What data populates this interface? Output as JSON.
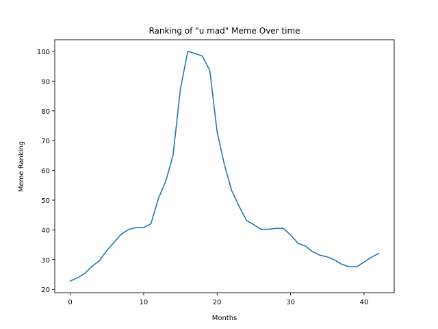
{
  "chart_data": {
    "type": "line",
    "title": "Ranking of \"u mad\" Meme Over time",
    "xlabel": "Months",
    "ylabel": "Meme Ranking",
    "xlim": [
      -2.1,
      44.1
    ],
    "ylim": [
      18.9,
      103.9
    ],
    "xticks": [
      0,
      10,
      20,
      30,
      40
    ],
    "yticks": [
      20,
      30,
      40,
      50,
      60,
      70,
      80,
      90,
      100
    ],
    "grid": false,
    "series": [
      {
        "color": "#1f77b4",
        "x": [
          0,
          1,
          2,
          3,
          4,
          5,
          6,
          7,
          8,
          9,
          10,
          11,
          12,
          13,
          14,
          15,
          16,
          17,
          18,
          19,
          20,
          21,
          22,
          23,
          24,
          25,
          26,
          27,
          28,
          29,
          30,
          31,
          32,
          33,
          34,
          35,
          36,
          37,
          38,
          39,
          40,
          41,
          42
        ],
        "values": [
          22.8,
          23.9,
          25.4,
          27.8,
          29.7,
          33.1,
          35.9,
          38.7,
          40.2,
          40.8,
          40.8,
          42.1,
          50.5,
          56.3,
          65.1,
          87.3,
          100,
          99.3,
          98.4,
          93.6,
          72.9,
          61.8,
          53.1,
          47.9,
          43.2,
          41.7,
          40.2,
          40.2,
          40.5,
          40.5,
          38.3,
          35.5,
          34.6,
          32.7,
          31.5,
          30.9,
          29.9,
          28.4,
          27.6,
          27.6,
          29.2,
          30.8,
          32.1
        ]
      }
    ]
  }
}
